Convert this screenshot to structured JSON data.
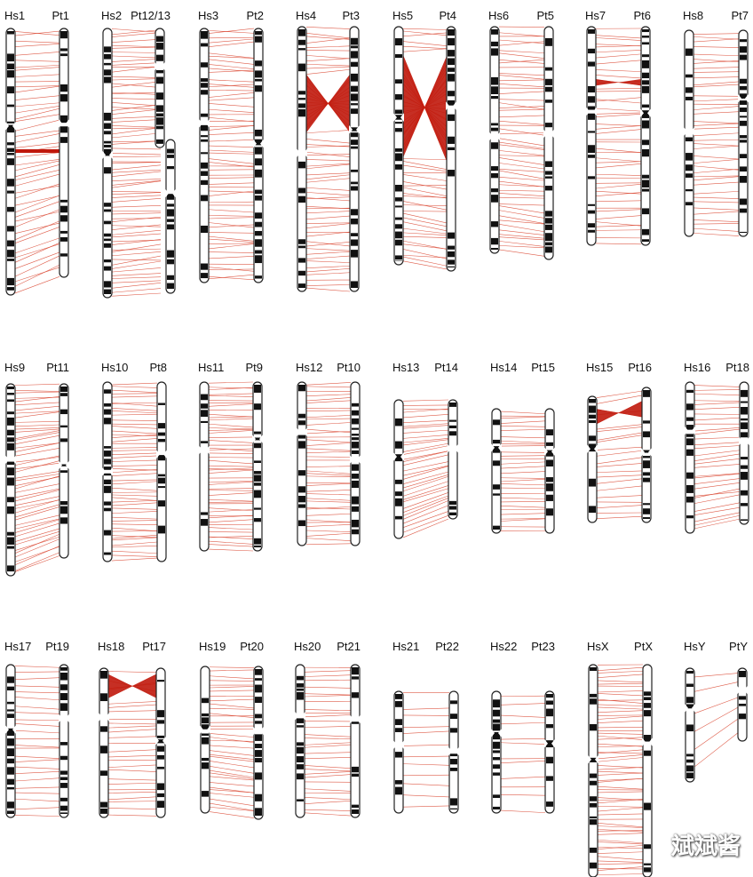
{
  "figure": {
    "pairs": [
      {
        "human": "Hs1",
        "chimp": "Pt1",
        "lines": 46,
        "inversion": {
          "shape": "band",
          "pos": 0.46
        }
      },
      {
        "human": "Hs2",
        "chimp": "Pt12/13",
        "lines": 70,
        "split": true
      },
      {
        "human": "Hs3",
        "chimp": "Pt2",
        "lines": 58
      },
      {
        "human": "Hs4",
        "chimp": "Pt3",
        "lines": 60,
        "inversion": {
          "shape": "bowtie",
          "from": 0.18,
          "to": 0.4
        }
      },
      {
        "human": "Hs5",
        "chimp": "Pt4",
        "lines": 55,
        "inversion": {
          "shape": "bowtie",
          "from": 0.12,
          "to": 0.55
        }
      },
      {
        "human": "Hs6",
        "chimp": "Pt5",
        "lines": 52
      },
      {
        "human": "Hs7",
        "chimp": "Pt6",
        "lines": 44,
        "inversion": {
          "shape": "bowtie",
          "from": 0.24,
          "to": 0.27
        }
      },
      {
        "human": "Hs8",
        "chimp": "Pt7",
        "lines": 40
      },
      {
        "human": "Hs9",
        "chimp": "Pt11",
        "lines": 48
      },
      {
        "human": "Hs10",
        "chimp": "Pt8",
        "lines": 50
      },
      {
        "human": "Hs11",
        "chimp": "Pt9",
        "lines": 50
      },
      {
        "human": "Hs12",
        "chimp": "Pt10",
        "lines": 40
      },
      {
        "human": "Hs13",
        "chimp": "Pt14",
        "lines": 34
      },
      {
        "human": "Hs14",
        "chimp": "Pt15",
        "lines": 30
      },
      {
        "human": "Hs15",
        "chimp": "Pt16",
        "lines": 22,
        "inversion": {
          "shape": "bowtie",
          "from": 0.1,
          "to": 0.22
        }
      },
      {
        "human": "Hs16",
        "chimp": "Pt18",
        "lines": 30
      },
      {
        "human": "Hs17",
        "chimp": "Pt19",
        "lines": 24
      },
      {
        "human": "Hs18",
        "chimp": "Pt17",
        "lines": 28,
        "inversion": {
          "shape": "bowtie",
          "from": 0.04,
          "to": 0.2
        }
      },
      {
        "human": "Hs19",
        "chimp": "Pt20",
        "lines": 36
      },
      {
        "human": "Hs20",
        "chimp": "Pt21",
        "lines": 30
      },
      {
        "human": "Hs21",
        "chimp": "Pt22",
        "lines": 12
      },
      {
        "human": "Hs22",
        "chimp": "Pt23",
        "lines": 12
      },
      {
        "human": "HsX",
        "chimp": "PtX",
        "lines": 60
      },
      {
        "human": "HsY",
        "chimp": "PtY",
        "lines": 6
      }
    ],
    "colors": {
      "line": "#d9402a",
      "inversion": "#c0180c",
      "band": "#111111",
      "outline": "#222222"
    }
  },
  "watermark": "斌斌酱"
}
